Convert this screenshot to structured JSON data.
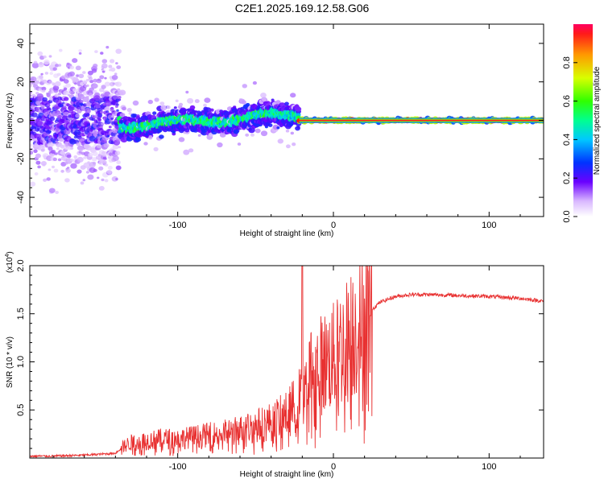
{
  "title": "C2E1.2025.169.12.58.G06",
  "chart_data": [
    {
      "type": "heatmap",
      "name": "spectrogram",
      "xlabel": "Height of straight line (km)",
      "ylabel": "Frequency (Hz)",
      "xlim": [
        -195,
        135
      ],
      "ylim": [
        -50,
        50
      ],
      "xticks": [
        -100,
        0,
        100
      ],
      "xtick_labels": [
        "-100",
        "0",
        "100"
      ],
      "yticks": [
        -40,
        -20,
        0,
        20,
        40
      ],
      "ytick_labels": [
        "-40",
        "-20",
        "0",
        "20",
        "40"
      ],
      "colorbar": {
        "label": "Normalized spectral amplitude",
        "range": [
          0,
          1
        ],
        "ticks": [
          0.0,
          0.2,
          0.4,
          0.6,
          0.8
        ],
        "tick_labels": [
          "0.0",
          "0.2",
          "0.4",
          "0.6",
          "0.8"
        ]
      },
      "segments": [
        {
          "x_start": -195,
          "x_end": -137,
          "spread_hz": 48,
          "amplitude": 0.18
        },
        {
          "x_start": -137,
          "x_end": -22,
          "spread_hz": 8,
          "amplitude": 0.35
        },
        {
          "x_start": -22,
          "x_end": 135,
          "spread_hz": 1.5,
          "amplitude": 0.95
        }
      ]
    },
    {
      "type": "line",
      "name": "snr",
      "xlabel": "Height of straight line (km)",
      "ylabel": "SNR (10 * v/v)",
      "y_multiplier_label": "(x10",
      "y_multiplier_exp": "4",
      "y_multiplier_close": ")",
      "xlim": [
        -195,
        135
      ],
      "ylim": [
        0,
        2.0
      ],
      "xticks": [
        -100,
        0,
        100
      ],
      "xtick_labels": [
        "-100",
        "0",
        "100"
      ],
      "yticks": [
        0.5,
        1.0,
        1.5,
        2.0
      ],
      "ytick_labels": [
        "0.5",
        "1.0",
        "1.5",
        "2.0"
      ],
      "color": "#e83030",
      "series": [
        {
          "name": "SNR",
          "x": [
            -195,
            -180,
            -160,
            -140,
            -135,
            -130,
            -120,
            -110,
            -100,
            -90,
            -80,
            -70,
            -60,
            -50,
            -40,
            -30,
            -25,
            -20,
            -18,
            -15,
            -10,
            -5,
            0,
            5,
            10,
            15,
            20,
            25,
            30,
            40,
            50,
            60,
            80,
            100,
            120,
            135
          ],
          "y": [
            0.02,
            0.02,
            0.03,
            0.05,
            0.12,
            0.16,
            0.18,
            0.2,
            0.2,
            0.22,
            0.24,
            0.26,
            0.29,
            0.33,
            0.38,
            0.45,
            0.55,
            0.65,
            0.8,
            0.9,
            0.95,
            1.0,
            1.05,
            1.15,
            1.25,
            1.35,
            1.45,
            1.55,
            1.62,
            1.68,
            1.7,
            1.7,
            1.69,
            1.68,
            1.66,
            1.63
          ]
        }
      ],
      "spike": {
        "x": -20,
        "y": 2.0
      }
    }
  ]
}
